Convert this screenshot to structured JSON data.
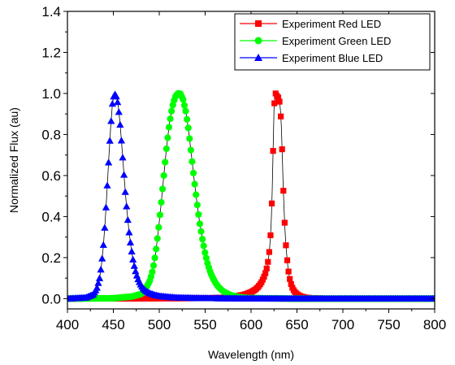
{
  "chart_data": {
    "type": "scatter",
    "title": "",
    "xlabel": "Wavelength (nm)",
    "ylabel": "Normalized Flux (au)",
    "xlim": [
      400,
      800
    ],
    "ylim": [
      -0.05,
      1.4
    ],
    "xticks": [
      400,
      450,
      500,
      550,
      600,
      650,
      700,
      750,
      800
    ],
    "yticks": [
      0.0,
      0.2,
      0.4,
      0.6,
      0.8,
      1.0,
      1.2,
      1.4
    ],
    "xtick_labels": [
      "400",
      "450",
      "500",
      "550",
      "600",
      "650",
      "700",
      "750",
      "800"
    ],
    "ytick_labels": [
      "0.0",
      "0.2",
      "0.4",
      "0.6",
      "0.8",
      "1.0",
      "1.2",
      "1.4"
    ],
    "grid": false,
    "legend_position": "top-right",
    "series": [
      {
        "name": "Experiment Red LED",
        "color": "#ff0000",
        "marker": "square",
        "x": [
          400,
          550,
          570,
          580,
          590,
          595,
          600,
          605,
          607,
          609,
          611,
          612,
          613,
          614,
          615,
          616,
          617,
          618,
          619,
          620,
          621,
          622,
          623,
          624,
          625,
          626,
          627,
          628,
          629,
          630,
          631,
          632,
          633,
          634,
          635,
          636,
          637,
          638,
          639,
          640,
          641,
          642,
          643,
          644,
          645,
          646,
          647,
          648,
          650,
          652,
          654,
          656,
          660,
          665,
          670,
          680,
          700,
          800
        ],
        "y": [
          0.0,
          0.002,
          0.005,
          0.01,
          0.017,
          0.023,
          0.032,
          0.045,
          0.054,
          0.064,
          0.077,
          0.085,
          0.095,
          0.105,
          0.116,
          0.13,
          0.147,
          0.168,
          0.196,
          0.235,
          0.291,
          0.38,
          0.52,
          0.72,
          0.92,
          1.0,
          1.0,
          0.99,
          0.98,
          0.98,
          0.96,
          0.92,
          0.84,
          0.7,
          0.55,
          0.43,
          0.33,
          0.26,
          0.205,
          0.16,
          0.125,
          0.1,
          0.08,
          0.065,
          0.053,
          0.044,
          0.037,
          0.031,
          0.022,
          0.016,
          0.012,
          0.009,
          0.005,
          0.003,
          0.002,
          0.001,
          0.0,
          0.0
        ]
      },
      {
        "name": "Experiment Green LED",
        "color": "#00ff00",
        "marker": "circle",
        "x": [
          400,
          450,
          470,
          480,
          485,
          490,
          493,
          496,
          499,
          502,
          505,
          508,
          511,
          514,
          517,
          520,
          523,
          526,
          529,
          532,
          535,
          538,
          541,
          544,
          547,
          550,
          553,
          556,
          559,
          562,
          565,
          568,
          571,
          574,
          577,
          580,
          585,
          590,
          595,
          600,
          610,
          620,
          650,
          700,
          800
        ],
        "y": [
          0.0,
          0.002,
          0.01,
          0.022,
          0.045,
          0.09,
          0.14,
          0.22,
          0.33,
          0.46,
          0.6,
          0.74,
          0.85,
          0.93,
          0.98,
          1.0,
          1.0,
          0.97,
          0.91,
          0.82,
          0.7,
          0.58,
          0.47,
          0.37,
          0.29,
          0.22,
          0.165,
          0.125,
          0.095,
          0.072,
          0.055,
          0.042,
          0.032,
          0.025,
          0.019,
          0.014,
          0.009,
          0.006,
          0.004,
          0.003,
          0.002,
          0.001,
          0.0,
          0.0,
          0.0
        ]
      },
      {
        "name": "Experiment Blue LED",
        "color": "#0000ff",
        "marker": "triangle",
        "x": [
          400,
          420,
          428,
          432,
          435,
          437,
          439,
          441,
          443,
          445,
          447,
          449,
          451,
          453,
          455,
          457,
          459,
          461,
          463,
          465,
          467,
          469,
          471,
          473,
          475,
          477,
          479,
          481,
          483,
          486,
          490,
          495,
          500,
          510,
          520,
          540,
          560,
          600,
          650,
          700,
          800
        ],
        "y": [
          0.0,
          0.005,
          0.02,
          0.05,
          0.1,
          0.16,
          0.25,
          0.37,
          0.52,
          0.68,
          0.83,
          0.95,
          1.0,
          0.99,
          0.95,
          0.87,
          0.76,
          0.64,
          0.52,
          0.42,
          0.33,
          0.26,
          0.2,
          0.155,
          0.12,
          0.095,
          0.075,
          0.06,
          0.048,
          0.036,
          0.026,
          0.018,
          0.013,
          0.008,
          0.005,
          0.003,
          0.002,
          0.001,
          0.0,
          0.0,
          0.0
        ]
      }
    ]
  }
}
